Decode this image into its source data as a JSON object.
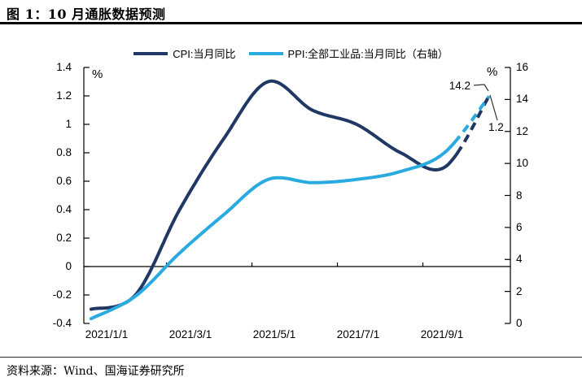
{
  "title": {
    "text": "图 1：10 月通胀数据预测"
  },
  "footer": {
    "source": "资料来源：Wind、国海证券研究所"
  },
  "legend": [
    {
      "label": "CPI:当月同比",
      "color": "#1F3864"
    },
    {
      "label": "PPI:全部工业品:当月同比（右轴）",
      "color": "#29ABE2"
    }
  ],
  "chart_data": {
    "type": "line",
    "x": [
      "2021/1",
      "2021/2",
      "2021/3",
      "2021/4",
      "2021/5",
      "2021/6",
      "2021/7",
      "2021/8",
      "2021/9",
      "2021/10"
    ],
    "x_tick_labels": [
      "2021/1/1",
      "2021/3/1",
      "2021/5/1",
      "2021/7/1",
      "2021/9/1"
    ],
    "series": [
      {
        "name": "CPI:当月同比",
        "axis": "left",
        "color": "#1F3864",
        "values": [
          -0.3,
          -0.2,
          0.4,
          0.9,
          1.3,
          1.1,
          1.0,
          0.8,
          0.7,
          1.2
        ],
        "forecast_from_index": 8
      },
      {
        "name": "PPI:全部工业品:当月同比（右轴）",
        "axis": "right",
        "color": "#29ABE2",
        "values": [
          0.3,
          1.7,
          4.4,
          6.8,
          9.0,
          8.8,
          9.0,
          9.5,
          10.7,
          14.2
        ],
        "forecast_from_index": 8
      }
    ],
    "left_axis": {
      "unit": "%",
      "min": -0.4,
      "max": 1.4,
      "tick_labels": [
        "1.4",
        "1.2",
        "1",
        "0.8",
        "0.6",
        "0.4",
        "0.2",
        "0",
        "-0.2",
        "-0.4"
      ]
    },
    "right_axis": {
      "unit": "%",
      "min": 0,
      "max": 16,
      "tick_labels": [
        "16",
        "14",
        "12",
        "10",
        "8",
        "6",
        "4",
        "2",
        "0"
      ]
    },
    "annotations": {
      "ppi": {
        "text": "14.2"
      },
      "cpi": {
        "text": "1.2"
      }
    },
    "legend_position": "top-center",
    "grid": false,
    "style_note": "dashed final segment = forecast"
  }
}
